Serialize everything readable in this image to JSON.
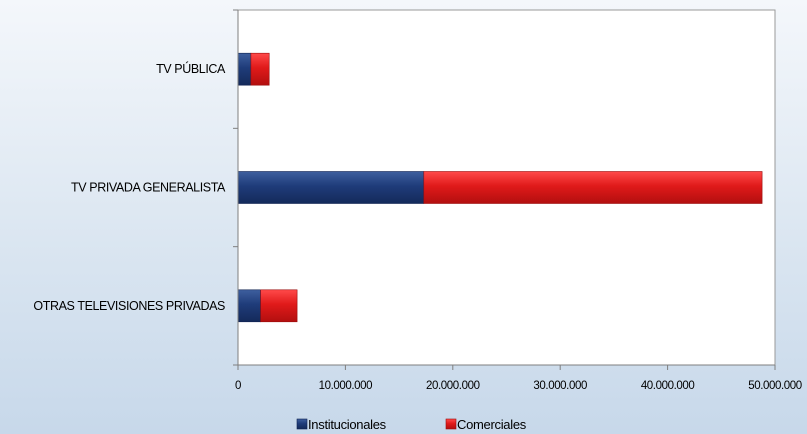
{
  "chart_data": {
    "type": "bar",
    "orientation": "horizontal",
    "stacked": true,
    "categories": [
      "TV PÚBLICA",
      "TV PRIVADA GENERALISTA",
      "OTRAS TELEVISIONES PRIVADAS"
    ],
    "series": [
      {
        "name": "Institucionales",
        "color": "#1f3c7a",
        "values": [
          1200000,
          17300000,
          2100000
        ]
      },
      {
        "name": "Comerciales",
        "color": "#e01a1a",
        "values": [
          1700000,
          31500000,
          3400000
        ]
      }
    ],
    "x_ticks": [
      "0",
      "10.000.000",
      "20.000.000",
      "30.000.000",
      "40.000.000",
      "50.000.000"
    ],
    "xlim": [
      0,
      50000000
    ],
    "grid": false,
    "legend_position": "bottom"
  }
}
